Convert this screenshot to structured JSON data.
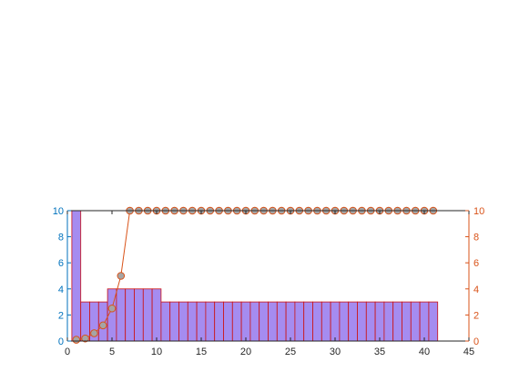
{
  "chart_data": {
    "type": "bar+line",
    "title": "",
    "xlabel": "",
    "ylabel_left": "",
    "ylabel_right": "",
    "xlim": [
      0,
      45
    ],
    "ylim_left": [
      0,
      10
    ],
    "ylim_right": [
      0,
      10
    ],
    "x_ticks": [
      0,
      5,
      10,
      15,
      20,
      25,
      30,
      35,
      40,
      45
    ],
    "y_ticks_left": [
      0,
      2,
      4,
      6,
      8,
      10
    ],
    "y_ticks_right": [
      0,
      2,
      4,
      6,
      8,
      10
    ],
    "grid": false,
    "bar_series": {
      "x": [
        1,
        2,
        3,
        4,
        5,
        6,
        7,
        8,
        9,
        10,
        11,
        12,
        13,
        14,
        15,
        16,
        17,
        18,
        19,
        20,
        21,
        22,
        23,
        24,
        25,
        26,
        27,
        28,
        29,
        30,
        31,
        32,
        33,
        34,
        35,
        36,
        37,
        38,
        39,
        40,
        41
      ],
      "values": [
        10,
        3,
        3,
        3,
        4,
        4,
        4,
        4,
        4,
        4,
        3,
        3,
        3,
        3,
        3,
        3,
        3,
        3,
        3,
        3,
        3,
        3,
        3,
        3,
        3,
        3,
        3,
        3,
        3,
        3,
        3,
        3,
        3,
        3,
        3,
        3,
        3,
        3,
        3,
        3,
        3
      ],
      "axis": "left"
    },
    "line_series": {
      "x": [
        1,
        2,
        3,
        4,
        5,
        6,
        7,
        8,
        9,
        10,
        11,
        12,
        13,
        14,
        15,
        16,
        17,
        18,
        19,
        20,
        21,
        22,
        23,
        24,
        25,
        26,
        27,
        28,
        29,
        30,
        31,
        32,
        33,
        34,
        35,
        36,
        37,
        38,
        39,
        40,
        41
      ],
      "values": [
        0.1,
        0.2,
        0.6,
        1.2,
        2.5,
        5,
        10,
        10,
        10,
        10,
        10,
        10,
        10,
        10,
        10,
        10,
        10,
        10,
        10,
        10,
        10,
        10,
        10,
        10,
        10,
        10,
        10,
        10,
        10,
        10,
        10,
        10,
        10,
        10,
        10,
        10,
        10,
        10,
        10,
        10,
        10
      ],
      "axis": "right"
    }
  },
  "colors": {
    "bar_fill": "#a58cf0",
    "bar_edge": "#cc1111",
    "line": "#d95319",
    "marker_fill": "#a5a5a5",
    "marker_edge": "#d95319",
    "left_axis": "#0072bd",
    "right_axis": "#d95319",
    "x_axis": "#262626"
  }
}
